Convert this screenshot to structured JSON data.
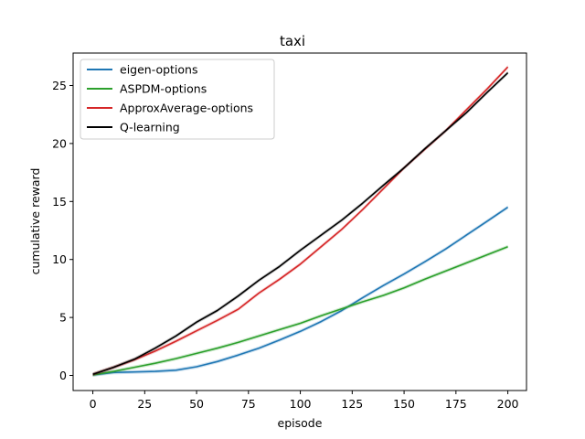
{
  "chart_data": {
    "type": "line",
    "title": "taxi",
    "xlabel": "episode",
    "ylabel": "cumulative reward",
    "xlim": [
      -9.5,
      209
    ],
    "ylim": [
      -1.3,
      27.8
    ],
    "xticks": [
      0,
      25,
      50,
      75,
      100,
      125,
      150,
      175,
      200
    ],
    "yticks": [
      0,
      5,
      10,
      15,
      20,
      25
    ],
    "grid": false,
    "legend_position": "top-left",
    "series": [
      {
        "name": "eigen-options",
        "color": "#1f77b4",
        "x": [
          0,
          10,
          20,
          30,
          40,
          50,
          60,
          70,
          80,
          90,
          100,
          110,
          120,
          130,
          140,
          150,
          160,
          170,
          180,
          190,
          200
        ],
        "y": [
          0.05,
          0.25,
          0.3,
          0.35,
          0.45,
          0.75,
          1.2,
          1.75,
          2.35,
          3.05,
          3.8,
          4.65,
          5.6,
          6.7,
          7.75,
          8.75,
          9.8,
          10.9,
          12.1,
          13.3,
          14.5
        ]
      },
      {
        "name": "ASPDM-options",
        "color": "#2ca02c",
        "x": [
          0,
          10,
          20,
          30,
          40,
          50,
          60,
          70,
          80,
          90,
          100,
          110,
          120,
          130,
          140,
          150,
          160,
          170,
          180,
          190,
          200
        ],
        "y": [
          0.05,
          0.35,
          0.7,
          1.05,
          1.45,
          1.9,
          2.35,
          2.85,
          3.4,
          3.95,
          4.5,
          5.15,
          5.75,
          6.35,
          6.9,
          7.55,
          8.3,
          9.0,
          9.7,
          10.4,
          11.1
        ]
      },
      {
        "name": "ApproxAverage-options",
        "color": "#d62728",
        "x": [
          0,
          10,
          20,
          30,
          40,
          50,
          60,
          70,
          80,
          90,
          100,
          110,
          120,
          130,
          140,
          150,
          160,
          170,
          180,
          190,
          200
        ],
        "y": [
          0.1,
          0.7,
          1.35,
          2.1,
          2.95,
          3.85,
          4.75,
          5.7,
          7.1,
          8.3,
          9.6,
          11.1,
          12.6,
          14.3,
          16.1,
          17.9,
          19.5,
          21.1,
          22.9,
          24.7,
          26.6
        ]
      },
      {
        "name": "Q-learning",
        "color": "#000000",
        "x": [
          0,
          10,
          20,
          30,
          40,
          50,
          60,
          70,
          80,
          90,
          100,
          110,
          120,
          130,
          140,
          150,
          160,
          170,
          180,
          190,
          200
        ],
        "y": [
          0.1,
          0.7,
          1.4,
          2.35,
          3.4,
          4.6,
          5.6,
          6.85,
          8.2,
          9.4,
          10.8,
          12.1,
          13.4,
          14.85,
          16.4,
          17.9,
          19.55,
          21.1,
          22.65,
          24.4,
          26.1
        ]
      }
    ]
  }
}
